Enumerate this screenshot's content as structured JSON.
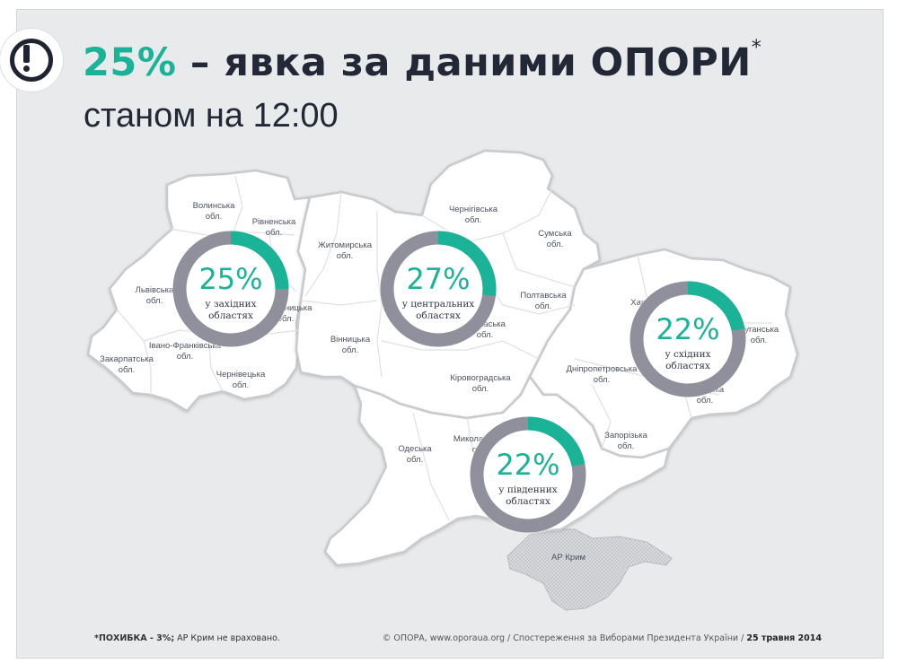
{
  "header": {
    "title_pct": "25%",
    "title_rest": " – явка за даними ОПОРИ",
    "title_mark": "*",
    "subtitle": "станом на 12:00"
  },
  "colors": {
    "accent": "#1ab397",
    "ring": "#8f909b",
    "map_fill": "#ffffff",
    "map_border": "#c9cacd",
    "background": "#e9eaec"
  },
  "regions": [
    {
      "label1": "Волинська",
      "label2": "обл."
    },
    {
      "label1": "Рівненська",
      "label2": "обл."
    },
    {
      "label1": "Львівська",
      "label2": "обл."
    },
    {
      "label1": "Хмельницька",
      "label2": "обл."
    },
    {
      "label1": "Івано-Франківська",
      "label2": "обл."
    },
    {
      "label1": "Закарпатська",
      "label2": "обл."
    },
    {
      "label1": "Чернівецька",
      "label2": "обл."
    },
    {
      "label1": "Житомирська",
      "label2": "обл."
    },
    {
      "label1": "Вінницька",
      "label2": "обл."
    },
    {
      "label1": "Чернігівська",
      "label2": "обл."
    },
    {
      "label1": "Сумська",
      "label2": "обл."
    },
    {
      "label1": "Полтавська",
      "label2": "обл."
    },
    {
      "label1": "Черкаська",
      "label2": "обл."
    },
    {
      "label1": "Кіровоградська",
      "label2": "обл."
    },
    {
      "label1": "Харківська",
      "label2": "обл."
    },
    {
      "label1": "Луганська",
      "label2": "обл."
    },
    {
      "label1": "Дніпропетровська",
      "label2": "обл."
    },
    {
      "label1": "Донецька",
      "label2": "обл."
    },
    {
      "label1": "Запорізька",
      "label2": "обл."
    },
    {
      "label1": "Одеська",
      "label2": "обл."
    },
    {
      "label1": "Миколаївська",
      "label2": "обл."
    },
    {
      "label1": "АР Крим",
      "label2": ""
    }
  ],
  "donuts": [
    {
      "pct": "25%",
      "value": 0.25,
      "line1": "у західних",
      "line2": "областях"
    },
    {
      "pct": "27%",
      "value": 0.27,
      "line1": "у центральних",
      "line2": "областях"
    },
    {
      "pct": "22%",
      "value": 0.22,
      "line1": "у східних",
      "line2": "областях"
    },
    {
      "pct": "22%",
      "value": 0.22,
      "line1": "у південних",
      "line2": "областях"
    }
  ],
  "footer": {
    "note_bold": "*ПОХИБКА - 3%;",
    "note_rest": " АР Крим не враховано.",
    "credit": "© ОПОРА, www.oporaua.org / Спостереження за Виборами Президента України / ",
    "date": "25 травня 2014"
  }
}
